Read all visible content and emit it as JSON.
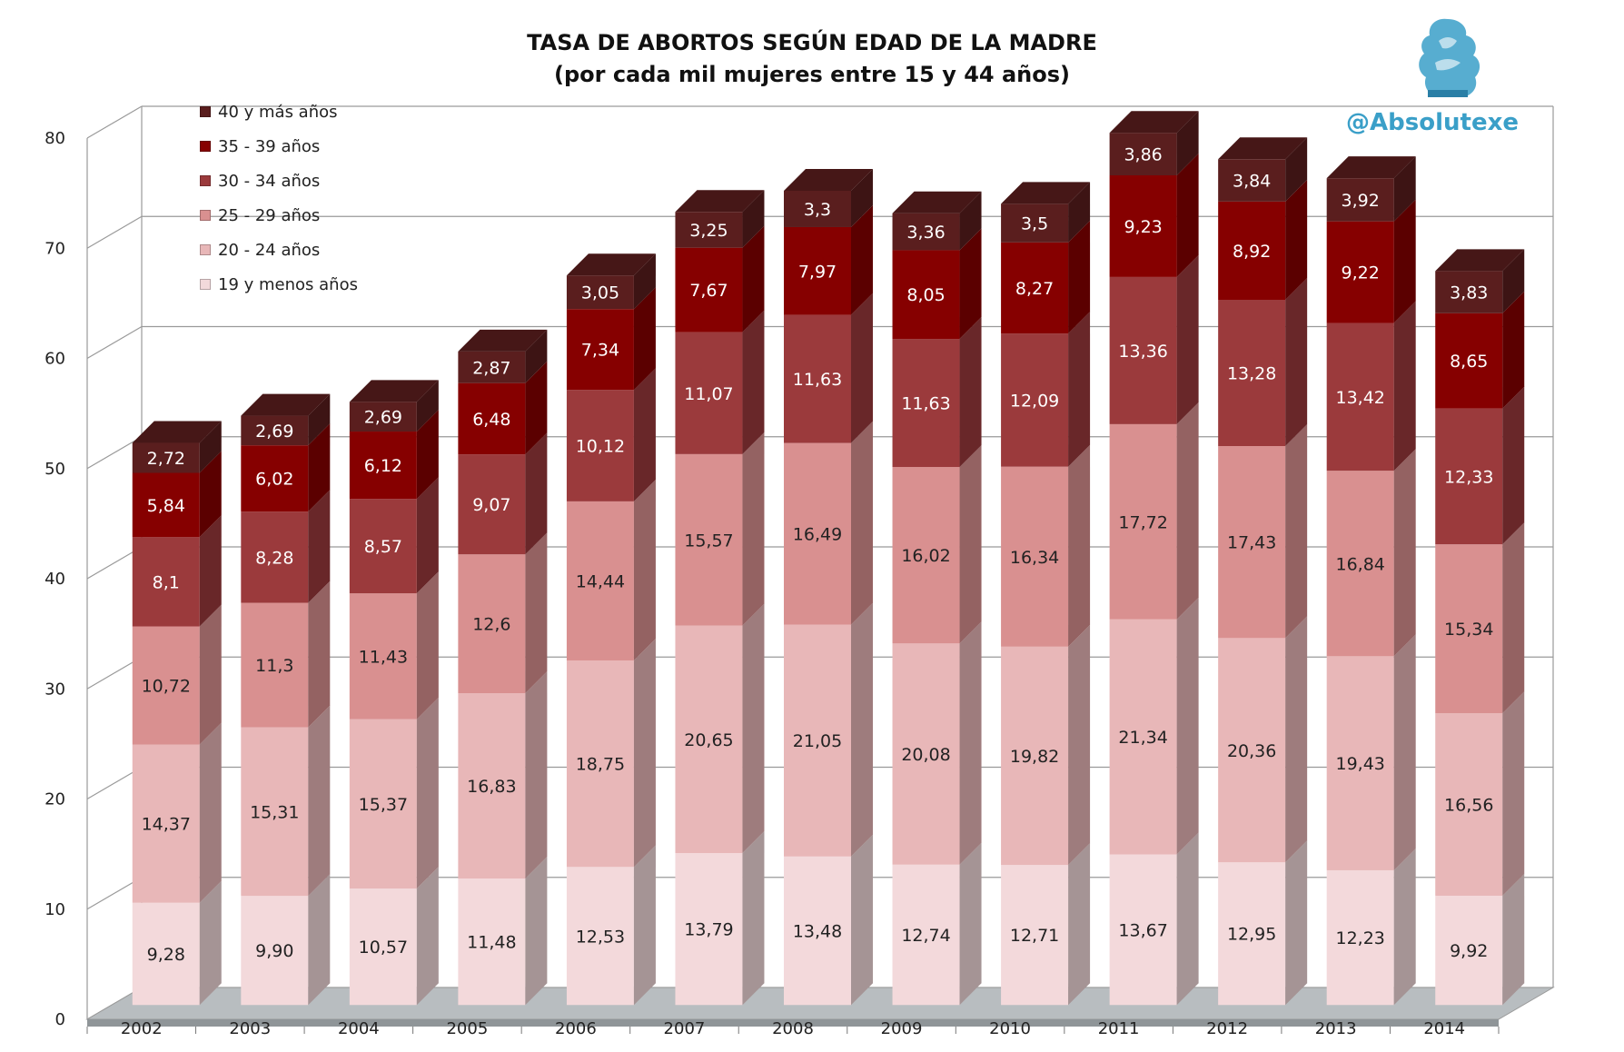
{
  "chart_data": {
    "type": "bar",
    "stacked": true,
    "three_d": true,
    "title": "TASA DE ABORTOS SEGÚN EDAD DE LA MADRE",
    "subtitle": "(por cada mil mujeres entre 15 y 44 años)",
    "categories": [
      "2002",
      "2003",
      "2004",
      "2005",
      "2006",
      "2007",
      "2008",
      "2009",
      "2010",
      "2011",
      "2012",
      "2013",
      "2014"
    ],
    "series": [
      {
        "name": "19 y menos años",
        "values": [
          9.28,
          9.9,
          10.57,
          11.48,
          12.53,
          13.79,
          13.48,
          12.74,
          12.71,
          13.67,
          12.95,
          12.23,
          9.92
        ],
        "labels": [
          "9,28",
          "9,90",
          "10,57",
          "11,48",
          "12,53",
          "13,79",
          "13,48",
          "12,74",
          "12,71",
          "13,67",
          "12,95",
          "12,23",
          "9,92"
        ]
      },
      {
        "name": "20 - 24 años",
        "values": [
          14.37,
          15.31,
          15.37,
          16.83,
          18.75,
          20.65,
          21.05,
          20.08,
          19.82,
          21.34,
          20.36,
          19.43,
          16.56
        ],
        "labels": [
          "14,37",
          "15,31",
          "15,37",
          "16,83",
          "18,75",
          "20,65",
          "21,05",
          "20,08",
          "19,82",
          "21,34",
          "20,36",
          "19,43",
          "16,56"
        ]
      },
      {
        "name": "25 - 29 años",
        "values": [
          10.72,
          11.3,
          11.43,
          12.6,
          14.44,
          15.57,
          16.49,
          16.02,
          16.34,
          17.72,
          17.43,
          16.84,
          15.34
        ],
        "labels": [
          "10,72",
          "11,3",
          "11,43",
          "12,6",
          "14,44",
          "15,57",
          "16,49",
          "16,02",
          "16,34",
          "17,72",
          "17,43",
          "16,84",
          "15,34"
        ]
      },
      {
        "name": "30 - 34 años",
        "values": [
          8.1,
          8.28,
          8.57,
          9.07,
          10.12,
          11.07,
          11.63,
          11.63,
          12.09,
          13.36,
          13.28,
          13.42,
          12.33
        ],
        "labels": [
          "8,1",
          "8,28",
          "8,57",
          "9,07",
          "10,12",
          "11,07",
          "11,63",
          "11,63",
          "12,09",
          "13,36",
          "13,28",
          "13,42",
          "12,33"
        ]
      },
      {
        "name": "35 - 39 años",
        "values": [
          5.84,
          6.02,
          6.12,
          6.48,
          7.34,
          7.67,
          7.97,
          8.05,
          8.27,
          9.23,
          8.92,
          9.22,
          8.65
        ],
        "labels": [
          "5,84",
          "6,02",
          "6,12",
          "6,48",
          "7,34",
          "7,67",
          "7,97",
          "8,05",
          "8,27",
          "9,23",
          "8,92",
          "9,22",
          "8,65"
        ]
      },
      {
        "name": "40 y más años",
        "values": [
          2.72,
          2.69,
          2.69,
          2.87,
          3.05,
          3.25,
          3.3,
          3.36,
          3.5,
          3.86,
          3.84,
          3.92,
          3.83
        ],
        "labels": [
          "2,72",
          "2,69",
          "2,69",
          "2,87",
          "3,05",
          "3,25",
          "3,3",
          "3,36",
          "3,5",
          "3,86",
          "3,84",
          "3,92",
          "3,83"
        ]
      }
    ],
    "colors": [
      "#f3d9db",
      "#e8b7b8",
      "#d99090",
      "#9b3a3c",
      "#860000",
      "#5a1e1e"
    ],
    "label_colors": [
      "#222222",
      "#222222",
      "#222222",
      "#ffffff",
      "#ffffff",
      "#ffffff"
    ],
    "yticks": [
      "0",
      "10",
      "20",
      "30",
      "40",
      "50",
      "60",
      "70",
      "80"
    ],
    "ylim": [
      0,
      80
    ],
    "grid": true,
    "legend_position": "top-left",
    "legend_order": [
      "40 y más años",
      "35 - 39 años",
      "30 - 34 años",
      "25 - 29 años",
      "20 - 24 años",
      "19 y menos años"
    ]
  },
  "brand": {
    "handle": "@Absolutexe",
    "color": "#3a9fc8"
  }
}
